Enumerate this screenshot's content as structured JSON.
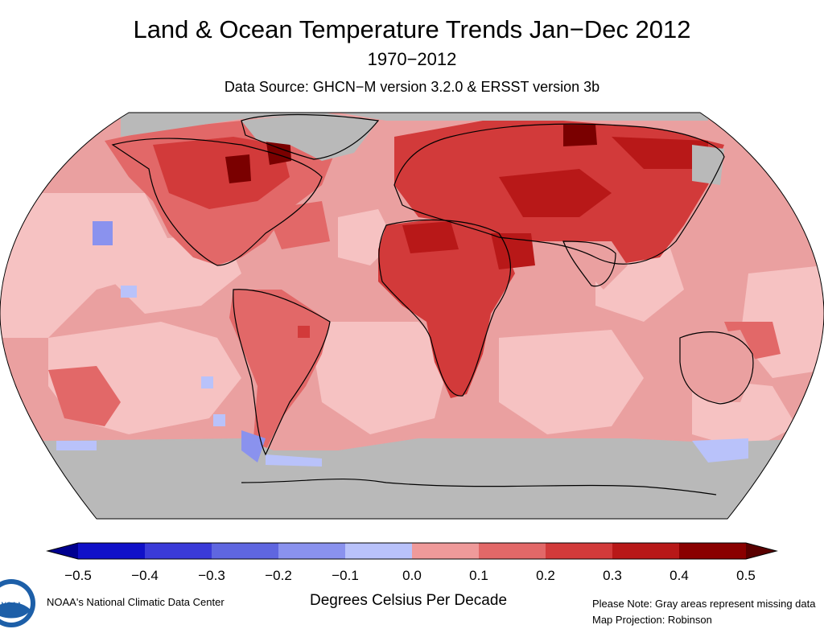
{
  "title": "Land & Ocean Temperature Trends Jan−Dec 2012",
  "subtitle": "1970−2012",
  "source": "Data Source: GHCN−M version 3.2.0 & ERSST version 3b",
  "units_label": "Degrees Celsius Per Decade",
  "credit": "NOAA's National Climatic Data Center",
  "note_line1": "Please Note: Gray areas represent missing data",
  "note_line2": "Map Projection: Robinson",
  "logo_text": "NOAA",
  "colorbar": {
    "ticks": [
      "−0.5",
      "−0.4",
      "−0.3",
      "−0.2",
      "−0.1",
      "0.0",
      "0.1",
      "0.2",
      "0.3",
      "0.4",
      "0.5"
    ],
    "colors": [
      "#1010c8",
      "#3a3ad8",
      "#5f66e0",
      "#8a92ee",
      "#b9c2fa",
      "#f6c2c2",
      "#ef9a9a",
      "#e26868",
      "#d23a3a",
      "#b81818",
      "#8a0000"
    ],
    "extend_low": "#000090",
    "extend_high": "#5a0000"
  },
  "map_colors": {
    "ocean_base": "#eaa0a0",
    "missing": "#b9b9b9",
    "light_warm": "#f6c2c2",
    "warm": "#e26868",
    "strong_warm": "#d23a3a",
    "very_warm": "#b81818",
    "extreme_warm": "#7a0000",
    "slight_cool": "#b9c2fa",
    "cool": "#8a92ee",
    "coast": "#000000"
  }
}
